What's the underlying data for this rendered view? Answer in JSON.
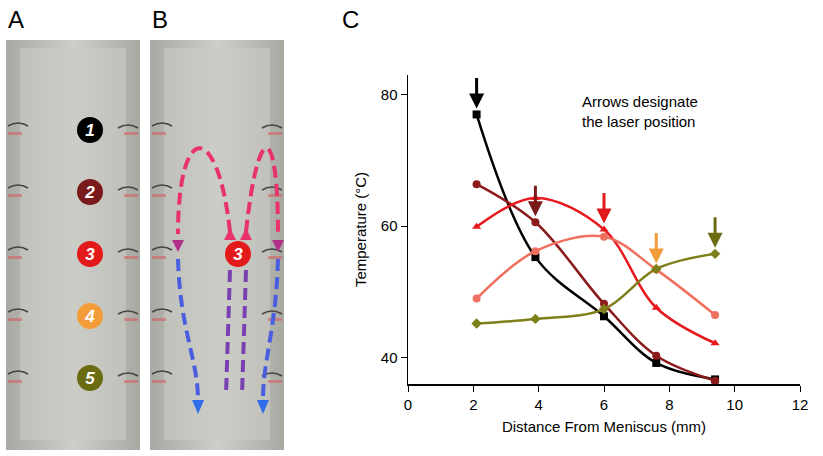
{
  "panel_labels": [
    "A",
    "B",
    "C"
  ],
  "panel_a": {
    "markers": [
      {
        "label": "1",
        "color": "#000000"
      },
      {
        "label": "2",
        "color": "#7a1a1a"
      },
      {
        "label": "3",
        "color": "#e31a1c"
      },
      {
        "label": "4",
        "color": "#f39c3a"
      },
      {
        "label": "5",
        "color": "#6b6b12"
      }
    ]
  },
  "panel_b": {
    "marker": {
      "label": "3",
      "color": "#e31a1c"
    }
  },
  "chart_data": {
    "type": "line",
    "annotation": [
      "Arrows designate",
      "the laser position"
    ],
    "x_label": "Distance From Meniscus (mm)",
    "y_label": "Temperature (°C)",
    "xlim": [
      0,
      12
    ],
    "xticks": [
      0,
      2,
      4,
      6,
      8,
      10,
      12
    ],
    "ylim": [
      36,
      83
    ],
    "yticks": [
      40,
      60,
      80
    ],
    "grid": false,
    "x": [
      2.1,
      3.9,
      6.0,
      7.6,
      9.4
    ],
    "series": [
      {
        "color": "#000000",
        "marker": "square",
        "laser_position": 2.1,
        "values": [
          77.0,
          55.3,
          46.3,
          39.2,
          36.7
        ]
      },
      {
        "color": "#8b1a1a",
        "marker": "circle",
        "laser_position": 3.9,
        "values": [
          66.4,
          60.6,
          48.2,
          40.3,
          36.5
        ]
      },
      {
        "color": "#e8191e",
        "marker": "triangle",
        "laser_position": 6.0,
        "values": [
          59.9,
          64.3,
          59.5,
          47.6,
          42.2
        ]
      },
      {
        "color": "#f07060",
        "marker": "circle",
        "laser_position": 7.6,
        "values": [
          49.0,
          56.2,
          58.4,
          53.4,
          46.5
        ]
      },
      {
        "color": "#7f7f1a",
        "marker": "diamond",
        "laser_position": 9.4,
        "values": [
          45.2,
          45.9,
          47.4,
          53.5,
          55.8
        ]
      }
    ]
  }
}
